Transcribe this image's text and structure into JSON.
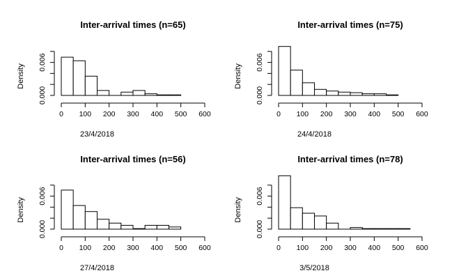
{
  "chart_data": [
    {
      "type": "bar",
      "title": "Inter-arrival times (n=65)",
      "xlabel": "23/4/2018",
      "ylabel": "Density",
      "xlim": [
        0,
        600
      ],
      "ylim": [
        0,
        0.008
      ],
      "xticks": [
        "0",
        "100",
        "200",
        "300",
        "400",
        "500",
        "600"
      ],
      "yticks": [
        "0.000",
        "0.006"
      ],
      "bins": [
        [
          0,
          50
        ],
        [
          50,
          100
        ],
        [
          100,
          150
        ],
        [
          150,
          200
        ],
        [
          200,
          250
        ],
        [
          250,
          300
        ],
        [
          300,
          350
        ],
        [
          350,
          400
        ],
        [
          400,
          450
        ],
        [
          450,
          500
        ],
        [
          500,
          550
        ]
      ],
      "values": [
        0.00695,
        0.0063,
        0.0035,
        0.0009,
        0,
        0.0006,
        0.0009,
        0.0003,
        0.0001,
        0.0001,
        0
      ]
    },
    {
      "type": "bar",
      "title": "Inter-arrival times (n=75)",
      "xlabel": "24/4/2018",
      "ylabel": "Density",
      "xlim": [
        0,
        600
      ],
      "ylim": [
        0,
        0.008
      ],
      "xticks": [
        "0",
        "100",
        "200",
        "300",
        "400",
        "500",
        "600"
      ],
      "yticks": [
        "0.000",
        "0.006"
      ],
      "bins": [
        [
          0,
          50
        ],
        [
          50,
          100
        ],
        [
          100,
          150
        ],
        [
          150,
          200
        ],
        [
          200,
          250
        ],
        [
          250,
          300
        ],
        [
          300,
          350
        ],
        [
          350,
          400
        ],
        [
          400,
          450
        ],
        [
          450,
          500
        ],
        [
          500,
          550
        ]
      ],
      "values": [
        0.0089,
        0.0046,
        0.0023,
        0.0011,
        0.0008,
        0.0006,
        0.0005,
        0.0003,
        0.0003,
        0.0001,
        0
      ]
    },
    {
      "type": "bar",
      "title": "Inter-arrival times (n=56)",
      "xlabel": "27/4/2018",
      "ylabel": "Density",
      "xlim": [
        0,
        600
      ],
      "ylim": [
        0,
        0.008
      ],
      "xticks": [
        "0",
        "100",
        "200",
        "300",
        "400",
        "500",
        "600"
      ],
      "yticks": [
        "0.000",
        "0.006"
      ],
      "bins": [
        [
          0,
          50
        ],
        [
          50,
          100
        ],
        [
          100,
          150
        ],
        [
          150,
          200
        ],
        [
          200,
          250
        ],
        [
          250,
          300
        ],
        [
          300,
          350
        ],
        [
          350,
          400
        ],
        [
          400,
          450
        ],
        [
          450,
          500
        ],
        [
          500,
          550
        ]
      ],
      "values": [
        0.0071,
        0.0043,
        0.0032,
        0.0018,
        0.0011,
        0.0007,
        0.0001,
        0.0007,
        0.0007,
        0.0004,
        0
      ]
    },
    {
      "type": "bar",
      "title": "Inter-arrival times (n=78)",
      "xlabel": "3/5/2018",
      "ylabel": "Density",
      "xlim": [
        0,
        600
      ],
      "ylim": [
        0,
        0.008
      ],
      "xticks": [
        "0",
        "100",
        "200",
        "300",
        "400",
        "500",
        "600"
      ],
      "yticks": [
        "0.000",
        "0.006"
      ],
      "bins": [
        [
          0,
          50
        ],
        [
          50,
          100
        ],
        [
          100,
          150
        ],
        [
          150,
          200
        ],
        [
          200,
          250
        ],
        [
          250,
          300
        ],
        [
          300,
          350
        ],
        [
          350,
          400
        ],
        [
          400,
          450
        ],
        [
          450,
          500
        ],
        [
          500,
          550
        ]
      ],
      "values": [
        0.0097,
        0.0039,
        0.0029,
        0.0024,
        0.0011,
        0,
        0.0003,
        0.0001,
        0.0001,
        0.0001,
        0.0001
      ]
    }
  ]
}
